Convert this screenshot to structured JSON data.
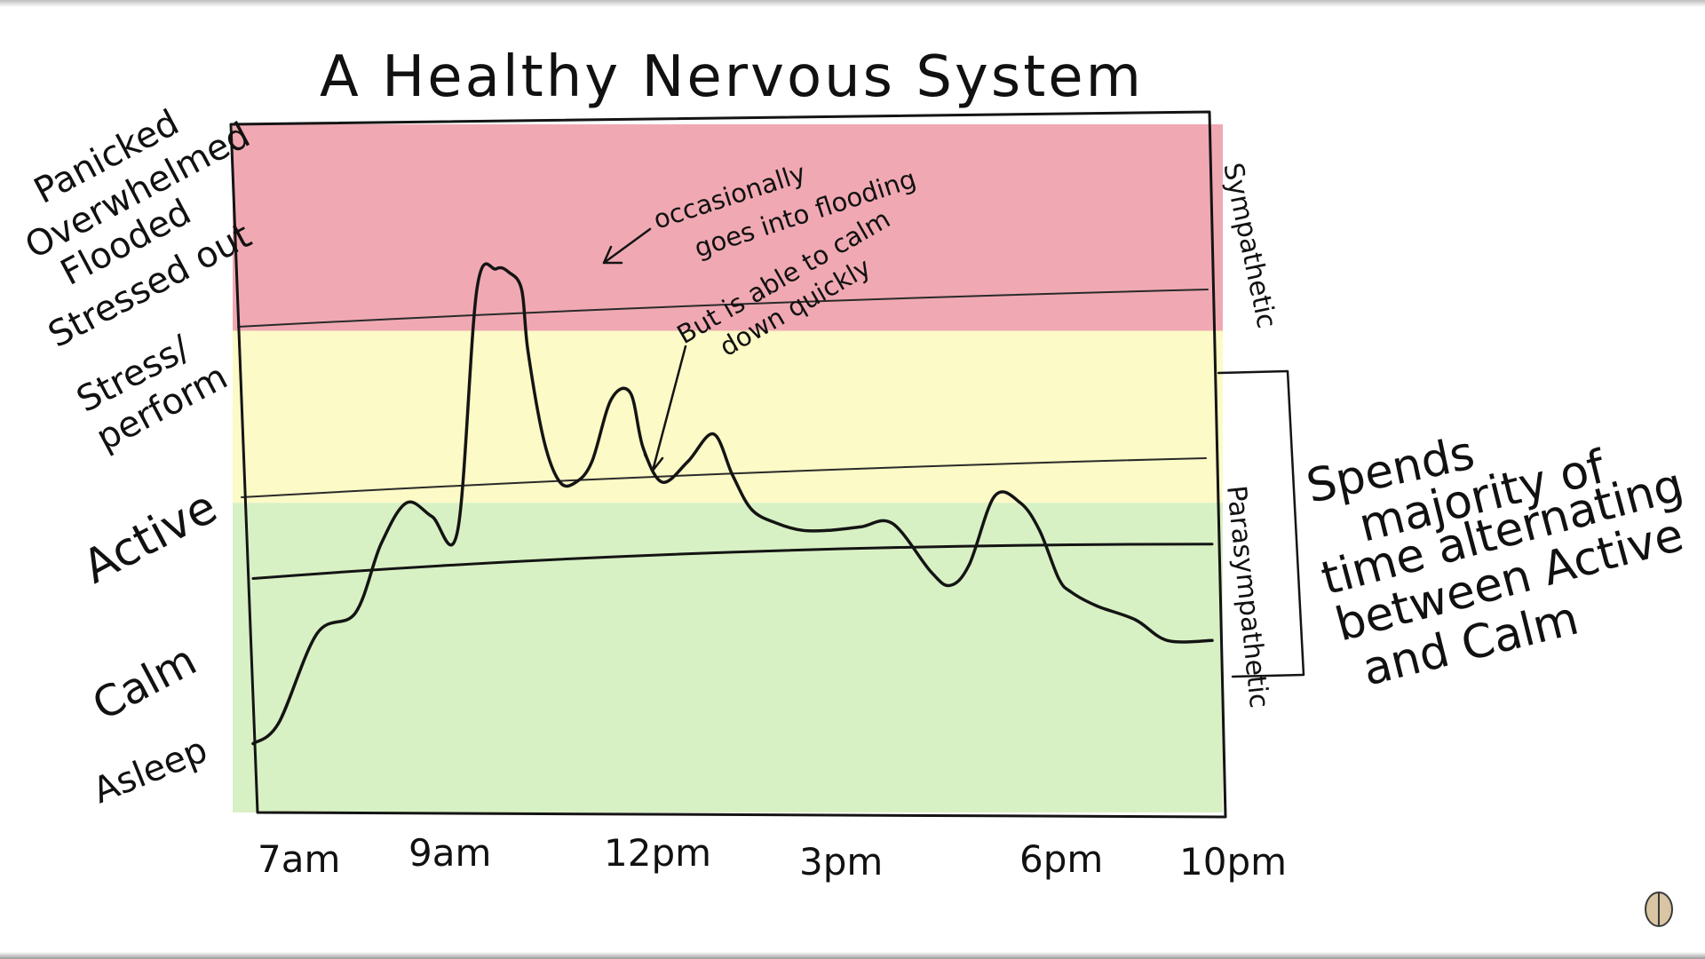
{
  "title": "A Healthy Nervous System",
  "colors": {
    "flooded_zone": "#f0a9b3",
    "stress_zone": "#fcfac6",
    "active_calm_zone": "#d8f1c4",
    "ink": "#141414"
  },
  "y_levels": [
    {
      "label": "Panicked",
      "level": 9
    },
    {
      "label": "Overwhelmed",
      "level": 8.4
    },
    {
      "label": "Flooded",
      "level": 7.8
    },
    {
      "label": "Stressed out",
      "level": 7.1
    },
    {
      "label": "Stress/",
      "level": 5.8
    },
    {
      "label": "perform",
      "level": 5.2
    },
    {
      "label": "Active",
      "level": 3.8
    },
    {
      "label": "Calm",
      "level": 1.9
    },
    {
      "label": "Asleep",
      "level": 0.9
    }
  ],
  "x_ticks": [
    "7am",
    "9am",
    "12pm",
    "3pm",
    "6pm",
    "10pm"
  ],
  "side_labels": {
    "upper": "Sympathetic",
    "lower": "Parasympathetic"
  },
  "annotations": {
    "flooding_1": "occasionally",
    "flooding_2": "goes into flooding",
    "recover_1": "But is able to calm",
    "recover_2": "down quickly"
  },
  "summary_note": [
    "Spends",
    "majority of",
    "time alternating",
    "between Active",
    "and Calm"
  ],
  "chart_data": {
    "type": "line",
    "title": "A Healthy Nervous System",
    "x_unit": "hour of day",
    "x_ticks": [
      {
        "label": "7am",
        "hour": 7
      },
      {
        "label": "9am",
        "hour": 9
      },
      {
        "label": "12pm",
        "hour": 12
      },
      {
        "label": "3pm",
        "hour": 15
      },
      {
        "label": "6pm",
        "hour": 18
      },
      {
        "label": "10pm",
        "hour": 22
      }
    ],
    "xlim": [
      7,
      22
    ],
    "ylim": [
      0,
      10
    ],
    "zones": [
      {
        "name": "flooded",
        "from": 7,
        "to": 10
      },
      {
        "name": "stress",
        "from": 4.5,
        "to": 7
      },
      {
        "name": "active-calm",
        "from": 0,
        "to": 4.5
      }
    ],
    "reference_line": {
      "start": 3.4,
      "end": 3.9
    },
    "series": [
      {
        "x": [
          7.0,
          7.4,
          8.0,
          8.6,
          9.0,
          9.4,
          9.8,
          10.2,
          10.5,
          10.8,
          11.0,
          11.2,
          11.3,
          11.55,
          11.8,
          12.05,
          12.3,
          12.6,
          12.9,
          13.1,
          13.4,
          13.8,
          14.2,
          14.5,
          14.8,
          15.2,
          15.6,
          16.0,
          16.5,
          17.0,
          17.6,
          17.9,
          18.2,
          18.6,
          19.0,
          19.3,
          19.6,
          19.8,
          20.2,
          20.8,
          21.3,
          22.0
        ],
        "y": [
          1.0,
          1.3,
          2.6,
          2.9,
          3.9,
          4.5,
          4.3,
          4.1,
          7.6,
          7.9,
          7.85,
          7.6,
          6.7,
          5.4,
          4.8,
          4.8,
          5.1,
          6.0,
          6.1,
          5.3,
          4.8,
          5.1,
          5.5,
          4.9,
          4.4,
          4.2,
          4.1,
          4.1,
          4.15,
          4.2,
          3.5,
          3.3,
          3.6,
          4.6,
          4.5,
          4.1,
          3.4,
          3.2,
          3.0,
          2.8,
          2.5,
          2.5
        ]
      }
    ]
  }
}
